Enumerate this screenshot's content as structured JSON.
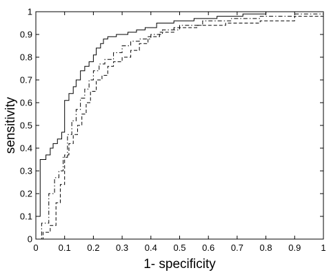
{
  "chart_data": {
    "type": "line",
    "title": "",
    "xlabel": "1- specificity",
    "ylabel": "sensitivity",
    "xlim": [
      0,
      1
    ],
    "ylim": [
      0,
      1
    ],
    "xticks": [
      "0",
      "0.1",
      "0.2",
      "0.3",
      "0.4",
      "0.5",
      "0.6",
      "0.7",
      "0.8",
      "0.9",
      "1"
    ],
    "yticks": [
      "0",
      "0.1",
      "0.2",
      "0.3",
      "0.4",
      "0.5",
      "0.6",
      "0.7",
      "0.8",
      "0.9",
      "1"
    ],
    "grid": false,
    "legend": false,
    "series": [
      {
        "style": "solid",
        "x": [
          0,
          0.015,
          0.015,
          0.035,
          0.035,
          0.05,
          0.05,
          0.06,
          0.06,
          0.075,
          0.075,
          0.09,
          0.09,
          0.1,
          0.1,
          0.115,
          0.115,
          0.13,
          0.13,
          0.14,
          0.14,
          0.155,
          0.155,
          0.17,
          0.17,
          0.185,
          0.185,
          0.2,
          0.2,
          0.21,
          0.21,
          0.225,
          0.225,
          0.235,
          0.235,
          0.25,
          0.25,
          0.265,
          0.265,
          0.28,
          0.28,
          0.32,
          0.32,
          0.35,
          0.35,
          0.38,
          0.38,
          0.42,
          0.42,
          0.48,
          0.48,
          0.55,
          0.55,
          0.63,
          0.63,
          0.72,
          0.72,
          0.8,
          0.8,
          1
        ],
        "y": [
          0.1,
          0.1,
          0.35,
          0.35,
          0.37,
          0.37,
          0.4,
          0.4,
          0.42,
          0.42,
          0.44,
          0.44,
          0.47,
          0.47,
          0.61,
          0.61,
          0.64,
          0.64,
          0.67,
          0.67,
          0.7,
          0.7,
          0.74,
          0.74,
          0.76,
          0.76,
          0.78,
          0.78,
          0.81,
          0.81,
          0.84,
          0.84,
          0.86,
          0.86,
          0.88,
          0.88,
          0.89,
          0.89,
          0.89,
          0.89,
          0.9,
          0.9,
          0.91,
          0.91,
          0.92,
          0.92,
          0.93,
          0.93,
          0.95,
          0.95,
          0.96,
          0.96,
          0.97,
          0.97,
          0.98,
          0.98,
          0.99,
          0.99,
          1,
          1
        ]
      },
      {
        "style": "dash-dot",
        "x": [
          0,
          0.02,
          0.02,
          0.045,
          0.045,
          0.065,
          0.065,
          0.08,
          0.08,
          0.095,
          0.095,
          0.11,
          0.11,
          0.125,
          0.125,
          0.14,
          0.14,
          0.155,
          0.155,
          0.17,
          0.17,
          0.185,
          0.185,
          0.2,
          0.2,
          0.22,
          0.22,
          0.24,
          0.24,
          0.27,
          0.27,
          0.3,
          0.3,
          0.33,
          0.33,
          0.36,
          0.36,
          0.4,
          0.4,
          0.44,
          0.44,
          0.5,
          0.5,
          0.58,
          0.58,
          0.68,
          0.68,
          0.78,
          0.78,
          0.9,
          0.9,
          1
        ],
        "y": [
          0,
          0,
          0.07,
          0.07,
          0.2,
          0.2,
          0.27,
          0.27,
          0.3,
          0.3,
          0.36,
          0.36,
          0.46,
          0.46,
          0.52,
          0.52,
          0.57,
          0.57,
          0.62,
          0.62,
          0.66,
          0.66,
          0.7,
          0.7,
          0.74,
          0.74,
          0.77,
          0.77,
          0.79,
          0.79,
          0.82,
          0.82,
          0.85,
          0.85,
          0.87,
          0.87,
          0.88,
          0.88,
          0.9,
          0.9,
          0.92,
          0.92,
          0.94,
          0.94,
          0.96,
          0.96,
          0.97,
          0.97,
          0.98,
          0.98,
          0.99,
          0.99
        ]
      },
      {
        "style": "dashed",
        "x": [
          0,
          0.025,
          0.025,
          0.05,
          0.05,
          0.07,
          0.07,
          0.085,
          0.085,
          0.1,
          0.1,
          0.115,
          0.115,
          0.13,
          0.13,
          0.145,
          0.145,
          0.16,
          0.16,
          0.175,
          0.175,
          0.19,
          0.19,
          0.21,
          0.21,
          0.23,
          0.23,
          0.25,
          0.25,
          0.27,
          0.27,
          0.3,
          0.3,
          0.33,
          0.33,
          0.36,
          0.36,
          0.39,
          0.39,
          0.43,
          0.43,
          0.48,
          0.48,
          0.56,
          0.56,
          0.66,
          0.66,
          0.78,
          0.78,
          0.9,
          0.9,
          1
        ],
        "y": [
          0,
          0,
          0.03,
          0.03,
          0.06,
          0.06,
          0.16,
          0.16,
          0.24,
          0.24,
          0.37,
          0.37,
          0.42,
          0.42,
          0.46,
          0.46,
          0.5,
          0.5,
          0.55,
          0.55,
          0.6,
          0.6,
          0.65,
          0.65,
          0.7,
          0.7,
          0.72,
          0.72,
          0.76,
          0.76,
          0.78,
          0.78,
          0.8,
          0.8,
          0.83,
          0.83,
          0.86,
          0.86,
          0.89,
          0.89,
          0.91,
          0.91,
          0.93,
          0.93,
          0.94,
          0.94,
          0.95,
          0.95,
          0.96,
          0.96,
          0.98,
          0.98
        ]
      }
    ]
  }
}
